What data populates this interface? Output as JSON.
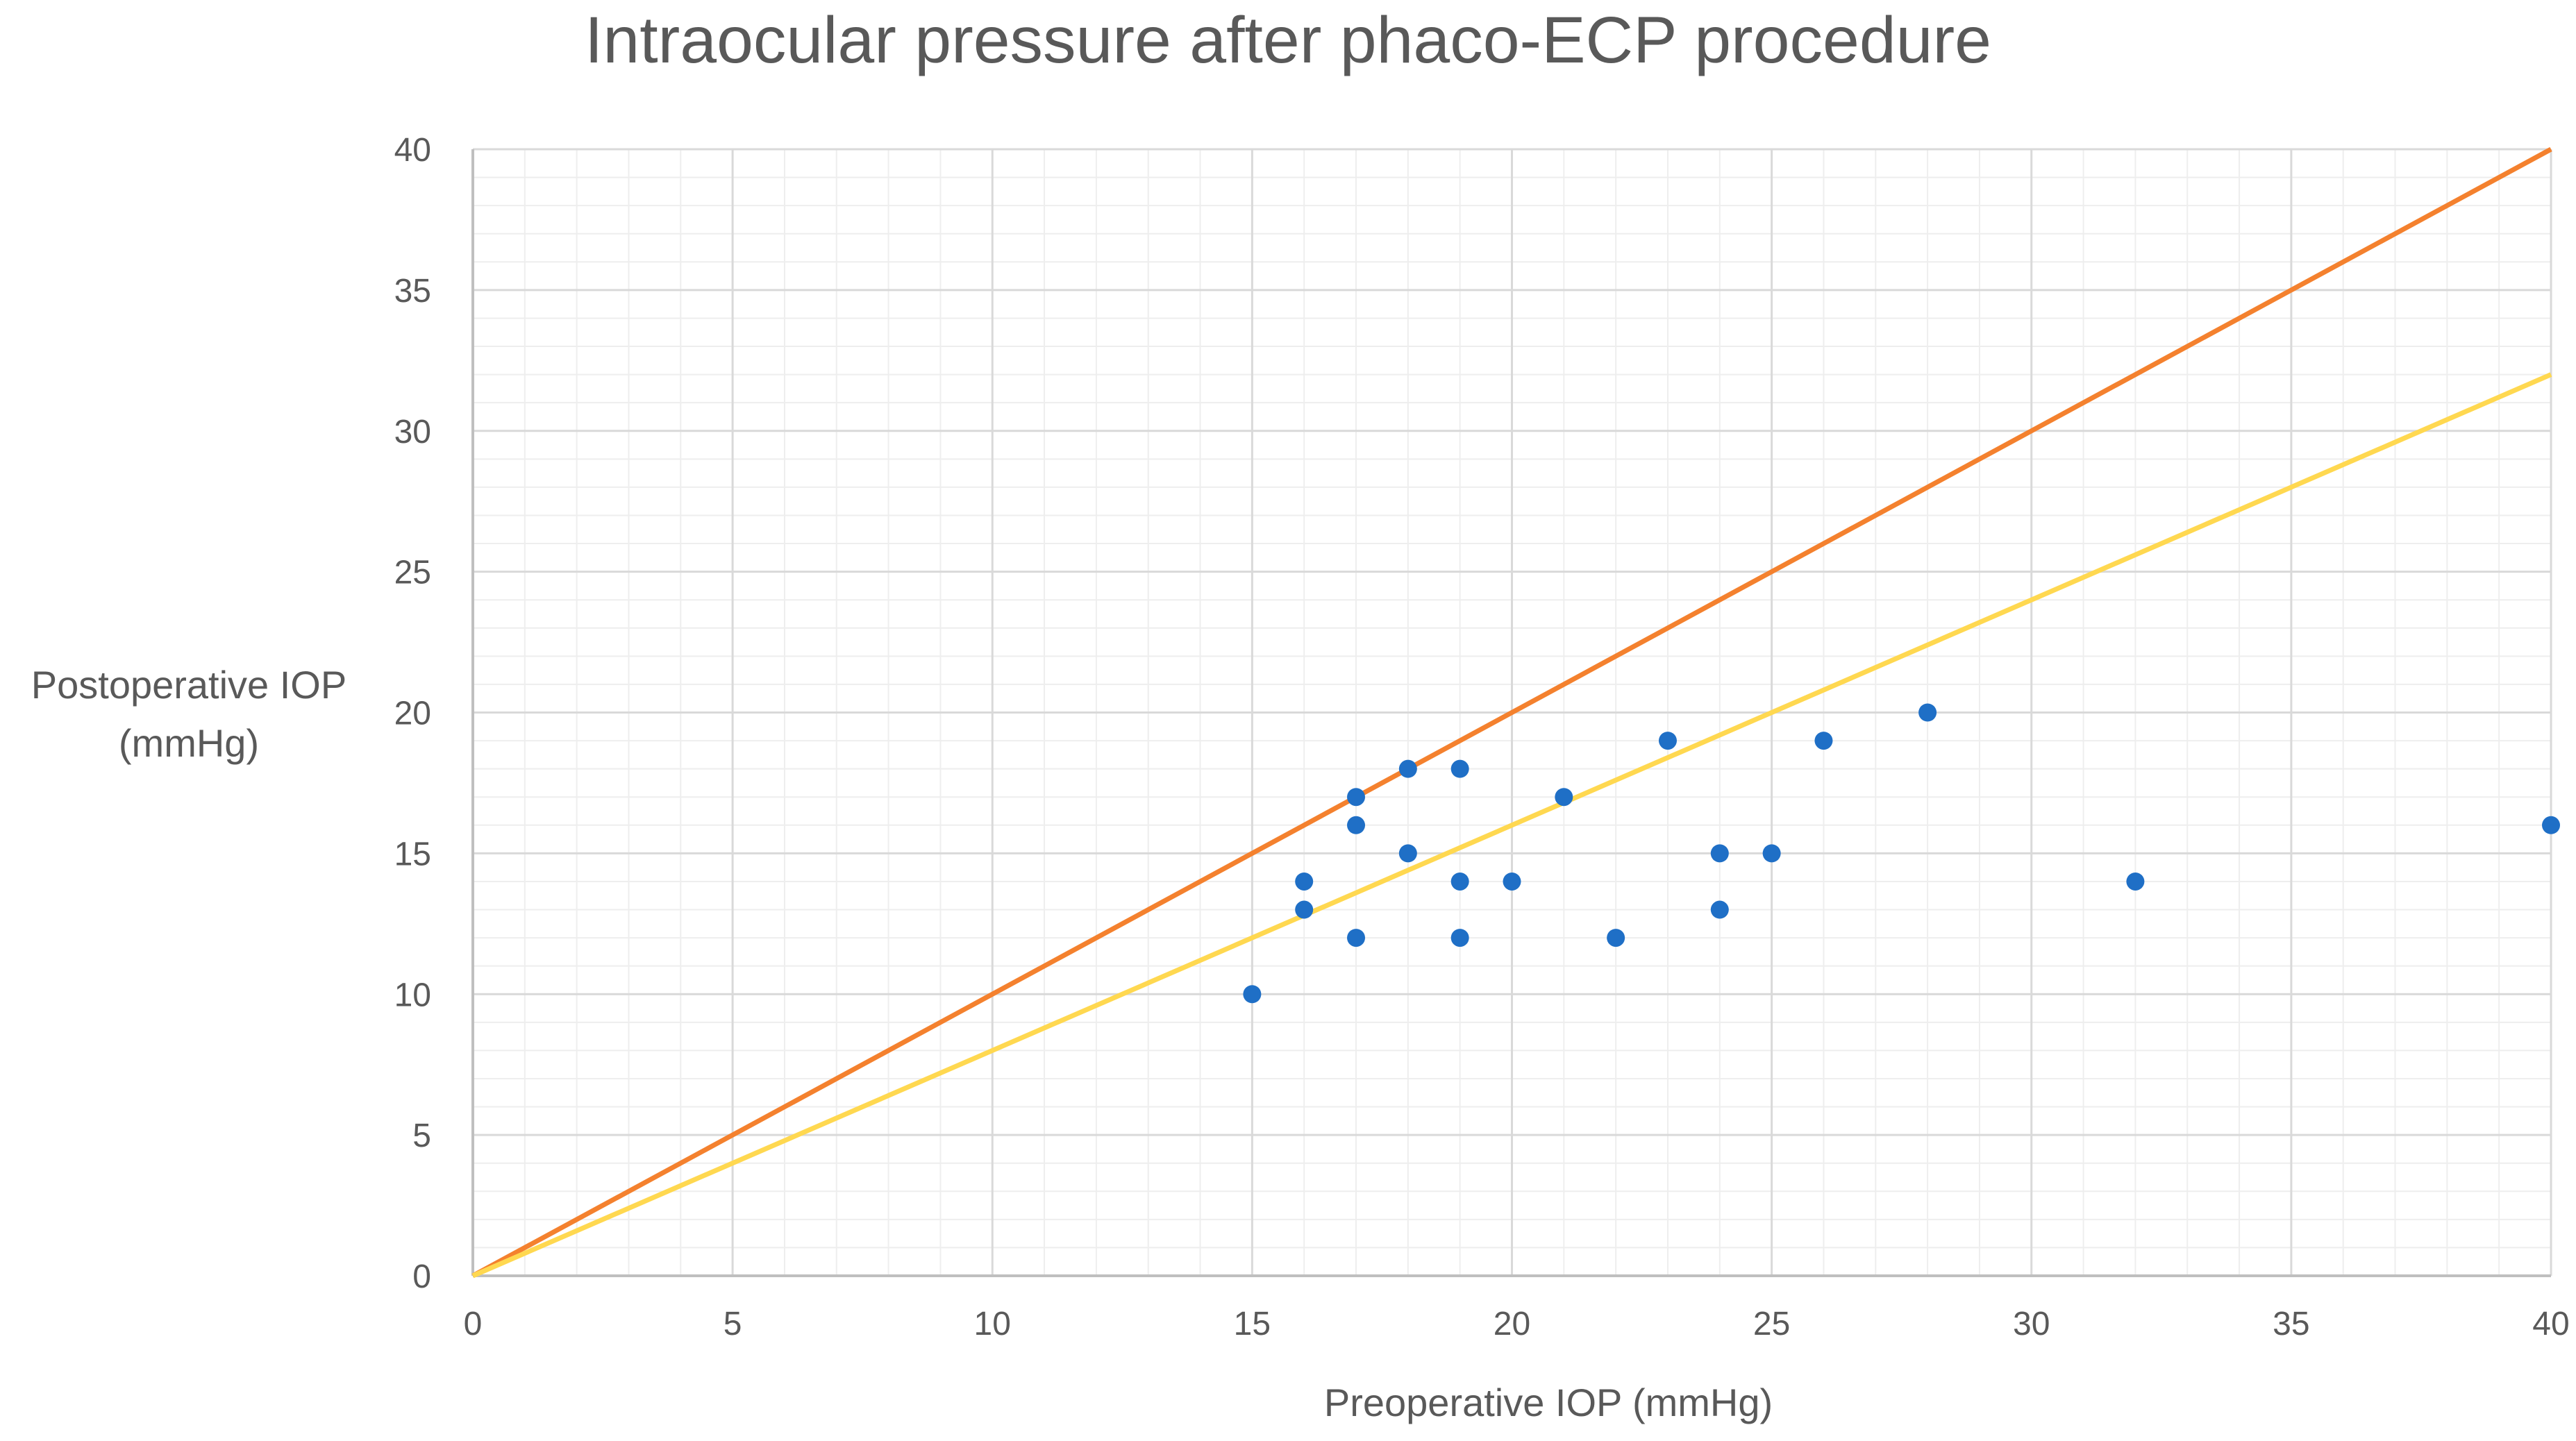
{
  "chart_data": {
    "type": "scatter",
    "title": "Intraocular pressure after phaco-ECP procedure",
    "xlabel": "Preoperative IOP (mmHg)",
    "ylabel_lines": [
      "Postoperative IOP",
      "(mmHg)"
    ],
    "xlim": [
      0,
      40
    ],
    "ylim": [
      0,
      40
    ],
    "x_ticks": [
      0,
      5,
      10,
      15,
      20,
      25,
      30,
      35,
      40
    ],
    "y_ticks": [
      0,
      5,
      10,
      15,
      20,
      25,
      30,
      35,
      40
    ],
    "grid": true,
    "minor_grid": true,
    "series": [
      {
        "type": "scatter",
        "color": "#1f6fc6",
        "points": [
          [
            15,
            10
          ],
          [
            16,
            14
          ],
          [
            16,
            13
          ],
          [
            17,
            17
          ],
          [
            17,
            16
          ],
          [
            17,
            12
          ],
          [
            18,
            18
          ],
          [
            18,
            15
          ],
          [
            19,
            18
          ],
          [
            19,
            14
          ],
          [
            19,
            12
          ],
          [
            20,
            14
          ],
          [
            21,
            17
          ],
          [
            22,
            12
          ],
          [
            23,
            19
          ],
          [
            24,
            15
          ],
          [
            24,
            13
          ],
          [
            25,
            15
          ],
          [
            26,
            19
          ],
          [
            28,
            20
          ],
          [
            32,
            14
          ],
          [
            40,
            16
          ]
        ]
      },
      {
        "type": "line",
        "color": "#f4812e",
        "points": [
          [
            0,
            0
          ],
          [
            40,
            40
          ]
        ]
      },
      {
        "type": "line",
        "color": "#ffd850",
        "points": [
          [
            0,
            0
          ],
          [
            40,
            32
          ]
        ]
      }
    ]
  }
}
